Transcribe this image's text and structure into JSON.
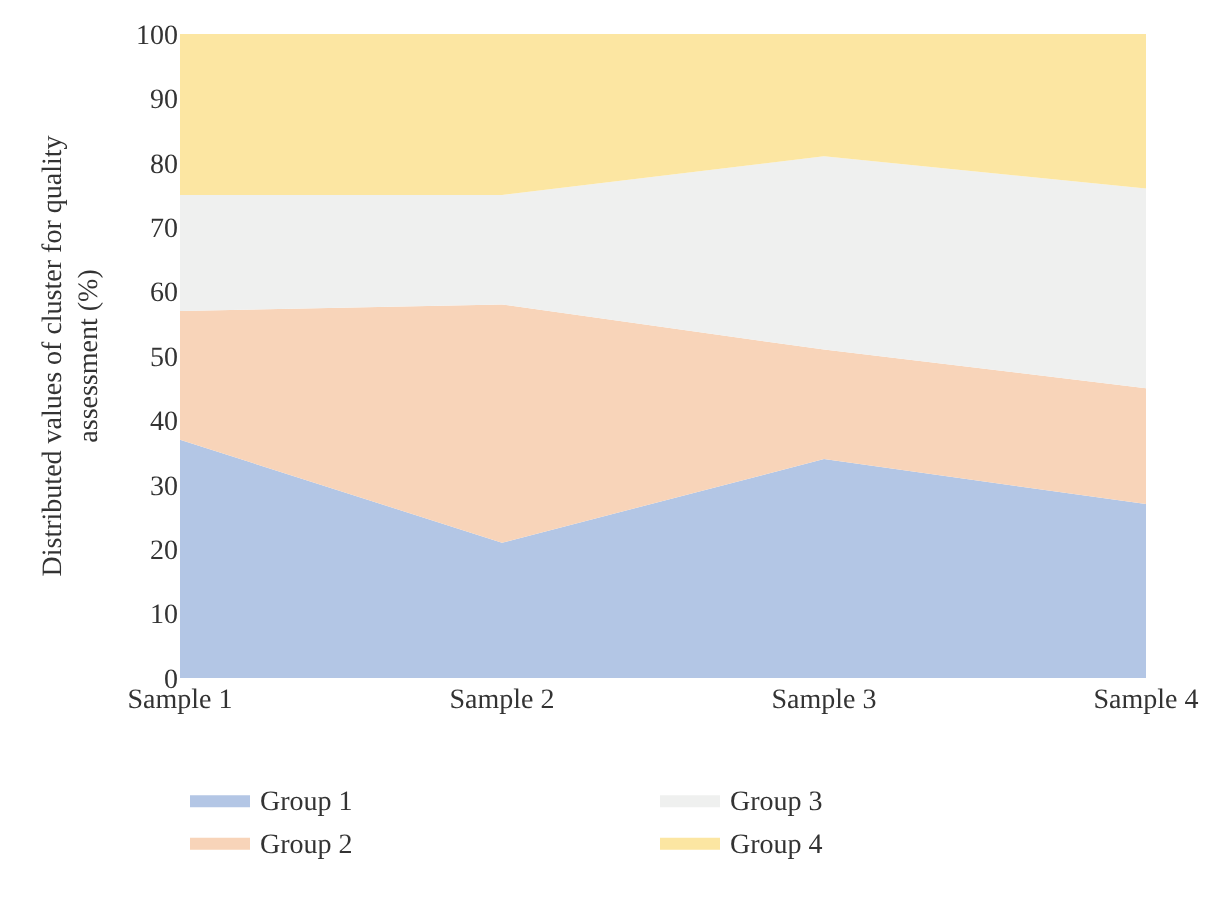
{
  "chart_data": {
    "type": "area",
    "stacked": true,
    "ylabel": "Distributed values of cluster for quality assessment (%)",
    "categories": [
      "Sample 1",
      "Sample 2",
      "Sample 3",
      "Sample 4"
    ],
    "series": [
      {
        "name": "Group 1",
        "color": "#b3c6e5",
        "values": [
          37,
          21,
          34,
          27
        ]
      },
      {
        "name": "Group 2",
        "color": "#f8d4b9",
        "values": [
          20,
          37,
          17,
          18
        ]
      },
      {
        "name": "Group 3",
        "color": "#eff0ef",
        "values": [
          18,
          17,
          30,
          31
        ]
      },
      {
        "name": "Group 4",
        "color": "#fce6a2",
        "values": [
          25,
          25,
          19,
          24
        ]
      }
    ],
    "ylim": [
      0,
      100
    ],
    "yticks": [
      0,
      10,
      20,
      30,
      40,
      50,
      60,
      70,
      80,
      90,
      100
    ],
    "legend": "bottom"
  }
}
